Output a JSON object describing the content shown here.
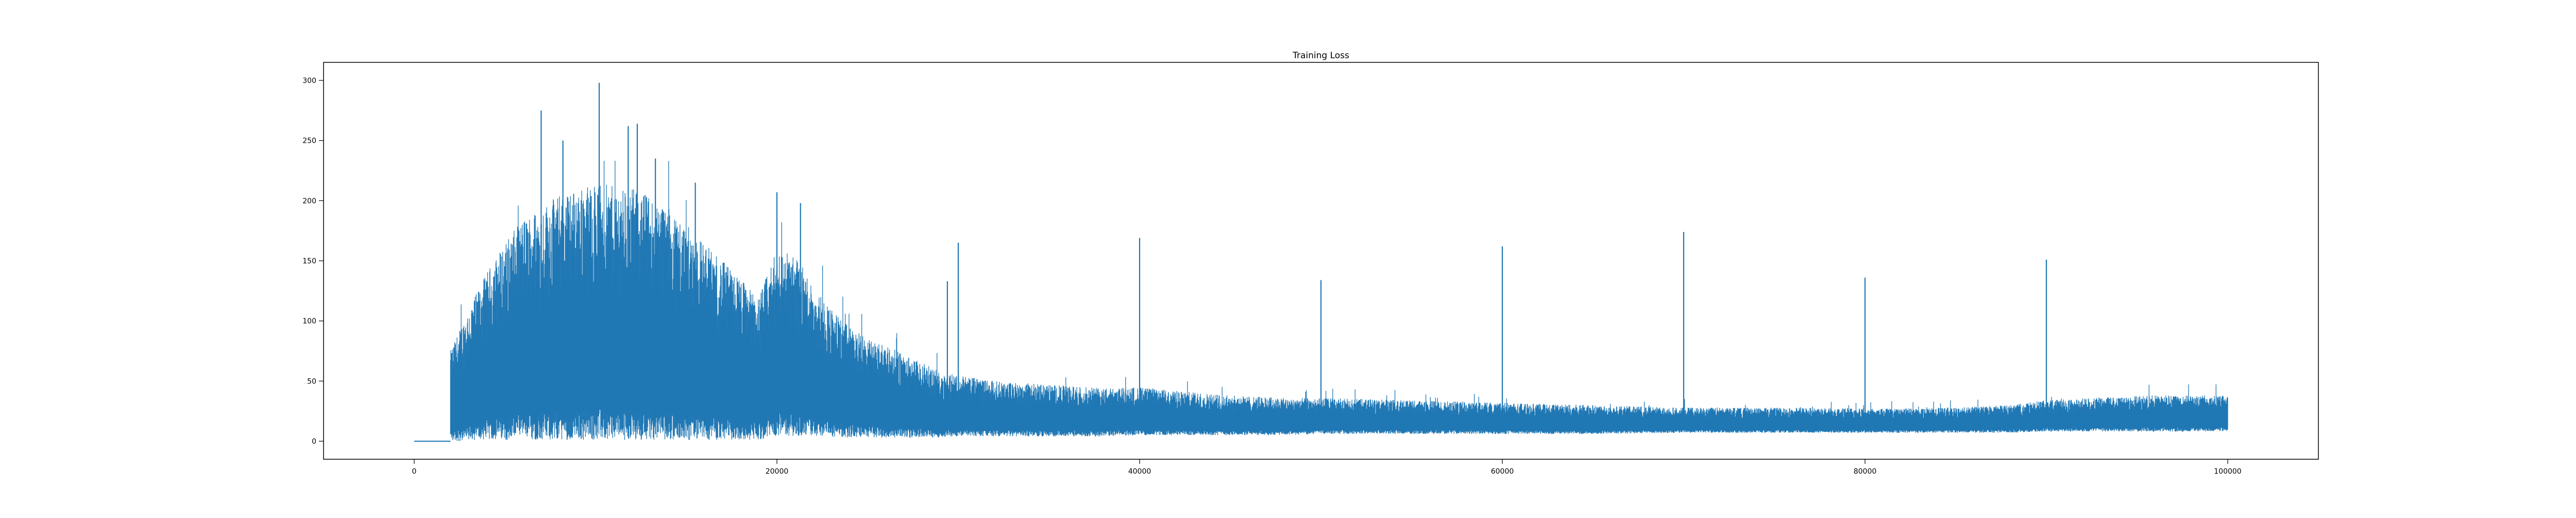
{
  "chart_data": {
    "type": "line",
    "title": "Training Loss",
    "xlabel": "",
    "ylabel": "",
    "xlim": [
      -5000,
      105000
    ],
    "ylim": [
      -15,
      315
    ],
    "x_ticks": [
      0,
      20000,
      40000,
      60000,
      80000,
      100000
    ],
    "y_ticks": [
      0,
      50,
      100,
      150,
      200,
      250,
      300
    ],
    "grid": false,
    "legend": "none",
    "series": [
      {
        "color": "#1f77b4",
        "x_range": [
          0,
          100000
        ],
        "flat_segment": {
          "x": [
            0,
            2000
          ],
          "y": 0
        },
        "envelope": {
          "x": [
            2000,
            3000,
            4000,
            5000,
            6000,
            7000,
            8000,
            9000,
            10000,
            11000,
            12000,
            13000,
            14000,
            15000,
            16000,
            17000,
            18000,
            19000,
            20000,
            21000,
            22000,
            23000,
            24000,
            25000,
            26000,
            27000,
            28000,
            29000,
            30000,
            32000,
            34000,
            36000,
            38000,
            40000,
            42000,
            45000,
            48000,
            50000,
            55000,
            60000,
            65000,
            70000,
            75000,
            80000,
            85000,
            88000,
            90000,
            95000,
            100000
          ],
          "upper": [
            75,
            110,
            140,
            165,
            185,
            195,
            205,
            210,
            215,
            212,
            210,
            205,
            195,
            180,
            165,
            150,
            135,
            120,
            160,
            155,
            130,
            110,
            95,
            85,
            80,
            72,
            65,
            58,
            55,
            50,
            48,
            46,
            44,
            45,
            42,
            38,
            36,
            36,
            34,
            32,
            30,
            28,
            28,
            27,
            28,
            30,
            34,
            38,
            38
          ],
          "lower": [
            0,
            0,
            1,
            1,
            1,
            1,
            1,
            1,
            1,
            1,
            1,
            1,
            1,
            1,
            1,
            1,
            1,
            1,
            5,
            4,
            4,
            3,
            3,
            3,
            3,
            3,
            3,
            3,
            4,
            4,
            4,
            4,
            4,
            5,
            5,
            5,
            5,
            6,
            6,
            6,
            6,
            7,
            7,
            7,
            7,
            7,
            8,
            8,
            8
          ]
        },
        "peaks": [
          {
            "x": 7000,
            "y": 275
          },
          {
            "x": 8200,
            "y": 250
          },
          {
            "x": 10200,
            "y": 298
          },
          {
            "x": 11800,
            "y": 262
          },
          {
            "x": 12300,
            "y": 264
          },
          {
            "x": 13300,
            "y": 235
          },
          {
            "x": 15500,
            "y": 215
          },
          {
            "x": 20000,
            "y": 207
          },
          {
            "x": 21300,
            "y": 198
          },
          {
            "x": 29400,
            "y": 133
          },
          {
            "x": 30000,
            "y": 165
          },
          {
            "x": 40000,
            "y": 169
          },
          {
            "x": 50000,
            "y": 134
          },
          {
            "x": 60000,
            "y": 162
          },
          {
            "x": 70000,
            "y": 174
          },
          {
            "x": 80000,
            "y": 136
          },
          {
            "x": 90000,
            "y": 151
          }
        ]
      }
    ]
  }
}
